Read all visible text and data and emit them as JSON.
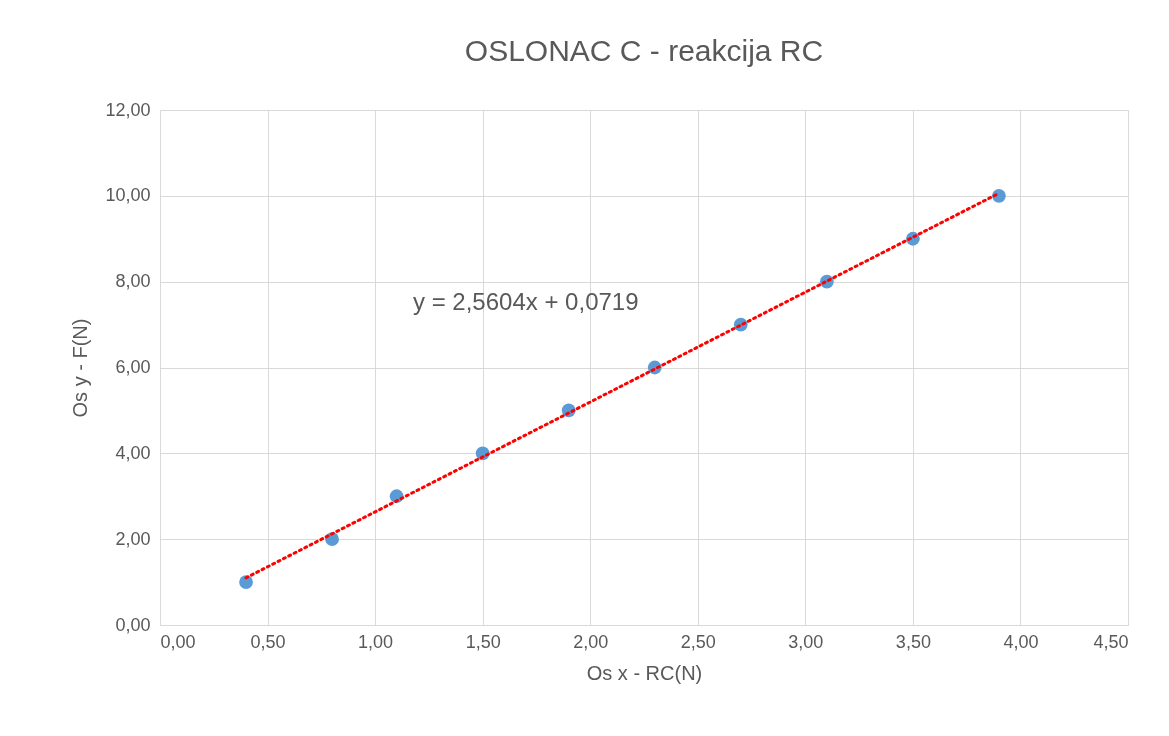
{
  "chart_data": {
    "type": "scatter",
    "title": "OSLONAC C - reakcija RC",
    "xlabel": "Os x - RC(N)",
    "ylabel": "Os y - F(N)",
    "x": [
      0.4,
      0.8,
      1.1,
      1.5,
      1.9,
      2.3,
      2.7,
      3.1,
      3.5,
      3.9
    ],
    "series": [
      {
        "color": "#5b9bd5",
        "marker": "circle",
        "values": [
          1,
          2,
          3,
          4,
          5,
          6,
          7,
          8,
          9,
          10
        ]
      },
      {
        "type": "line",
        "color": "#ff0000",
        "line_style": "dotted",
        "x": [
          0.4,
          3.9
        ],
        "values": [
          1.1,
          10.06
        ]
      }
    ],
    "annotations": [
      "y = 2,5604x + 0,0719"
    ],
    "xlim": [
      0,
      4.5
    ],
    "ylim": [
      0,
      12
    ],
    "xticks": [
      {
        "value": 0,
        "label": "0,00"
      },
      {
        "value": 0.5,
        "label": "0,50"
      },
      {
        "value": 1,
        "label": "1,00"
      },
      {
        "value": 1.5,
        "label": "1,50"
      },
      {
        "value": 2,
        "label": "2,00"
      },
      {
        "value": 2.5,
        "label": "2,50"
      },
      {
        "value": 3,
        "label": "3,00"
      },
      {
        "value": 3.5,
        "label": "3,50"
      },
      {
        "value": 4,
        "label": "4,00"
      },
      {
        "value": 4.5,
        "label": "4,50"
      }
    ],
    "yticks": [
      {
        "value": 0,
        "label": "0,00"
      },
      {
        "value": 2,
        "label": "2,00"
      },
      {
        "value": 4,
        "label": "4,00"
      },
      {
        "value": 6,
        "label": "6,00"
      },
      {
        "value": 8,
        "label": "8,00"
      },
      {
        "value": 10,
        "label": "10,00"
      },
      {
        "value": 12,
        "label": "12,00"
      }
    ],
    "grid": true
  }
}
